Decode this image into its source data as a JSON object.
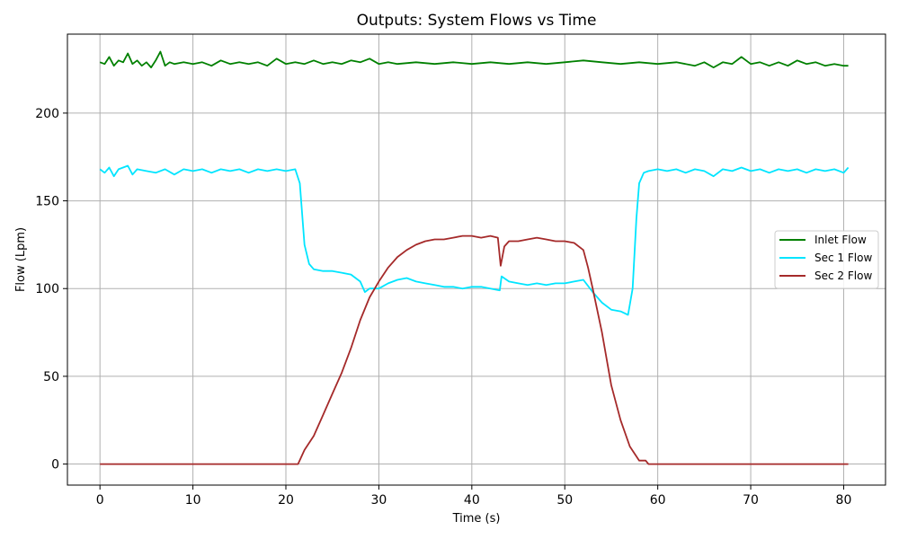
{
  "chart_data": {
    "type": "line",
    "title": "Outputs: System Flows vs Time",
    "xlabel": "Time (s)",
    "ylabel": "Flow (Lpm)",
    "xlim": [
      -3.5,
      84.5
    ],
    "ylim": [
      -12,
      245
    ],
    "xticks": [
      0,
      10,
      20,
      30,
      40,
      50,
      60,
      70,
      80
    ],
    "yticks": [
      0,
      50,
      100,
      150,
      200
    ],
    "grid": true,
    "legend_position": "center-right",
    "series": [
      {
        "name": "Inlet Flow",
        "color": "#008000",
        "points": [
          [
            0,
            229
          ],
          [
            0.5,
            228
          ],
          [
            1,
            232
          ],
          [
            1.5,
            227
          ],
          [
            2,
            230
          ],
          [
            2.5,
            229
          ],
          [
            3,
            234
          ],
          [
            3.5,
            228
          ],
          [
            4,
            230
          ],
          [
            4.5,
            227
          ],
          [
            5,
            229
          ],
          [
            5.5,
            226
          ],
          [
            6,
            230
          ],
          [
            6.5,
            235
          ],
          [
            7,
            227
          ],
          [
            7.5,
            229
          ],
          [
            8,
            228
          ],
          [
            9,
            229
          ],
          [
            10,
            228
          ],
          [
            11,
            229
          ],
          [
            12,
            227
          ],
          [
            13,
            230
          ],
          [
            14,
            228
          ],
          [
            15,
            229
          ],
          [
            16,
            228
          ],
          [
            17,
            229
          ],
          [
            18,
            227
          ],
          [
            19,
            231
          ],
          [
            20,
            228
          ],
          [
            21,
            229
          ],
          [
            22,
            228
          ],
          [
            23,
            230
          ],
          [
            24,
            228
          ],
          [
            25,
            229
          ],
          [
            26,
            228
          ],
          [
            27,
            230
          ],
          [
            28,
            229
          ],
          [
            29,
            231
          ],
          [
            30,
            228
          ],
          [
            31,
            229
          ],
          [
            32,
            228
          ],
          [
            34,
            229
          ],
          [
            36,
            228
          ],
          [
            38,
            229
          ],
          [
            40,
            228
          ],
          [
            42,
            229
          ],
          [
            44,
            228
          ],
          [
            46,
            229
          ],
          [
            48,
            228
          ],
          [
            50,
            229
          ],
          [
            52,
            230
          ],
          [
            54,
            229
          ],
          [
            56,
            228
          ],
          [
            58,
            229
          ],
          [
            60,
            228
          ],
          [
            62,
            229
          ],
          [
            64,
            227
          ],
          [
            65,
            229
          ],
          [
            66,
            226
          ],
          [
            67,
            229
          ],
          [
            68,
            228
          ],
          [
            69,
            232
          ],
          [
            70,
            228
          ],
          [
            71,
            229
          ],
          [
            72,
            227
          ],
          [
            73,
            229
          ],
          [
            74,
            227
          ],
          [
            75,
            230
          ],
          [
            76,
            228
          ],
          [
            77,
            229
          ],
          [
            78,
            227
          ],
          [
            79,
            228
          ],
          [
            80,
            227
          ],
          [
            80.5,
            227
          ]
        ]
      },
      {
        "name": "Sec 1 Flow",
        "color": "#00e5ff",
        "points": [
          [
            0,
            168
          ],
          [
            0.5,
            166
          ],
          [
            1,
            169
          ],
          [
            1.5,
            164
          ],
          [
            2,
            168
          ],
          [
            3,
            170
          ],
          [
            3.5,
            165
          ],
          [
            4,
            168
          ],
          [
            5,
            167
          ],
          [
            6,
            166
          ],
          [
            7,
            168
          ],
          [
            8,
            165
          ],
          [
            9,
            168
          ],
          [
            10,
            167
          ],
          [
            11,
            168
          ],
          [
            12,
            166
          ],
          [
            13,
            168
          ],
          [
            14,
            167
          ],
          [
            15,
            168
          ],
          [
            16,
            166
          ],
          [
            17,
            168
          ],
          [
            18,
            167
          ],
          [
            19,
            168
          ],
          [
            20,
            167
          ],
          [
            21,
            168
          ],
          [
            21.5,
            160
          ],
          [
            22,
            125
          ],
          [
            22.5,
            114
          ],
          [
            23,
            111
          ],
          [
            24,
            110
          ],
          [
            25,
            110
          ],
          [
            26,
            109
          ],
          [
            27,
            108
          ],
          [
            28,
            104
          ],
          [
            28.5,
            98
          ],
          [
            29,
            100
          ],
          [
            30,
            100
          ],
          [
            31,
            103
          ],
          [
            32,
            105
          ],
          [
            33,
            106
          ],
          [
            34,
            104
          ],
          [
            35,
            103
          ],
          [
            36,
            102
          ],
          [
            37,
            101
          ],
          [
            38,
            101
          ],
          [
            39,
            100
          ],
          [
            40,
            101
          ],
          [
            41,
            101
          ],
          [
            42,
            100
          ],
          [
            43,
            99
          ],
          [
            43.2,
            107
          ],
          [
            44,
            104
          ],
          [
            45,
            103
          ],
          [
            46,
            102
          ],
          [
            47,
            103
          ],
          [
            48,
            102
          ],
          [
            49,
            103
          ],
          [
            50,
            103
          ],
          [
            51,
            104
          ],
          [
            52,
            105
          ],
          [
            53,
            98
          ],
          [
            54,
            92
          ],
          [
            55,
            88
          ],
          [
            56,
            87
          ],
          [
            56.8,
            85
          ],
          [
            57.3,
            100
          ],
          [
            57.7,
            140
          ],
          [
            58,
            160
          ],
          [
            58.5,
            166
          ],
          [
            59,
            167
          ],
          [
            60,
            168
          ],
          [
            61,
            167
          ],
          [
            62,
            168
          ],
          [
            63,
            166
          ],
          [
            64,
            168
          ],
          [
            65,
            167
          ],
          [
            66,
            164
          ],
          [
            67,
            168
          ],
          [
            68,
            167
          ],
          [
            69,
            169
          ],
          [
            70,
            167
          ],
          [
            71,
            168
          ],
          [
            72,
            166
          ],
          [
            73,
            168
          ],
          [
            74,
            167
          ],
          [
            75,
            168
          ],
          [
            76,
            166
          ],
          [
            77,
            168
          ],
          [
            78,
            167
          ],
          [
            79,
            168
          ],
          [
            80,
            166
          ],
          [
            80.5,
            169
          ]
        ]
      },
      {
        "name": "Sec 2 Flow",
        "color": "#a52a2a",
        "points": [
          [
            0,
            0
          ],
          [
            5,
            0
          ],
          [
            10,
            0
          ],
          [
            15,
            0
          ],
          [
            20,
            0
          ],
          [
            21.3,
            0
          ],
          [
            22,
            8
          ],
          [
            23,
            16
          ],
          [
            24,
            28
          ],
          [
            25,
            40
          ],
          [
            26,
            52
          ],
          [
            27,
            66
          ],
          [
            28,
            82
          ],
          [
            29,
            95
          ],
          [
            30,
            104
          ],
          [
            31,
            112
          ],
          [
            32,
            118
          ],
          [
            33,
            122
          ],
          [
            34,
            125
          ],
          [
            35,
            127
          ],
          [
            36,
            128
          ],
          [
            37,
            128
          ],
          [
            38,
            129
          ],
          [
            39,
            130
          ],
          [
            40,
            130
          ],
          [
            41,
            129
          ],
          [
            42,
            130
          ],
          [
            42.8,
            129
          ],
          [
            43.1,
            113
          ],
          [
            43.5,
            124
          ],
          [
            44,
            127
          ],
          [
            45,
            127
          ],
          [
            46,
            128
          ],
          [
            47,
            129
          ],
          [
            48,
            128
          ],
          [
            49,
            127
          ],
          [
            50,
            127
          ],
          [
            51,
            126
          ],
          [
            52,
            122
          ],
          [
            52.5,
            112
          ],
          [
            53,
            100
          ],
          [
            54,
            75
          ],
          [
            55,
            45
          ],
          [
            56,
            25
          ],
          [
            57,
            10
          ],
          [
            58,
            2
          ],
          [
            58.7,
            2
          ],
          [
            59,
            0
          ],
          [
            65,
            0
          ],
          [
            70,
            0
          ],
          [
            75,
            0
          ],
          [
            80,
            0
          ],
          [
            80.5,
            0
          ]
        ]
      }
    ]
  }
}
